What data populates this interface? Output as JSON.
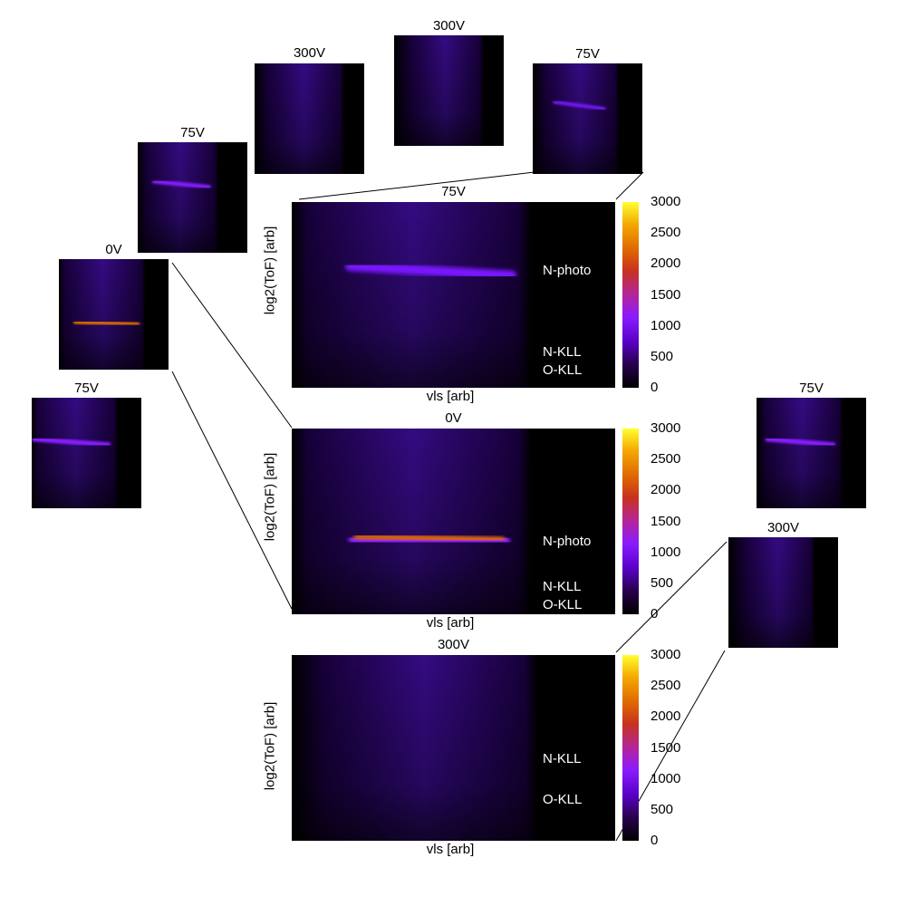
{
  "colorbar": {
    "min": 0,
    "max": 3000,
    "ticks": [
      "3000",
      "2500",
      "2000",
      "1500",
      "1000",
      "500",
      "0"
    ],
    "stops": [
      "#000000",
      "#2a0050",
      "#5a00c8",
      "#8a1cff",
      "#b3259a",
      "#c8321e",
      "#e06a00",
      "#f4a800",
      "#ffff30"
    ]
  },
  "thumbnails": [
    {
      "id": "t-300v-left",
      "title": "300V"
    },
    {
      "id": "t-300v-top",
      "title": "300V"
    },
    {
      "id": "t-75v-topright",
      "title": "75V"
    },
    {
      "id": "t-75v-upperleft",
      "title": "75V"
    },
    {
      "id": "t-0v-left",
      "title": "0V"
    },
    {
      "id": "t-75v-lowerleft",
      "title": "75V"
    },
    {
      "id": "t-75v-right",
      "title": "75V"
    },
    {
      "id": "t-300v-right",
      "title": "300V"
    }
  ],
  "chart_data": [
    {
      "type": "heatmap",
      "title": "75V",
      "xlabel": "vls [arb]",
      "ylabel": "log2(ToF) [arb]",
      "color_range": [
        0,
        3000
      ],
      "annotations": [
        "N-photo",
        "N-KLL",
        "O-KLL"
      ]
    },
    {
      "type": "heatmap",
      "title": "0V",
      "xlabel": "vls [arb]",
      "ylabel": "log2(ToF) [arb]",
      "color_range": [
        0,
        3000
      ],
      "annotations": [
        "N-photo",
        "N-KLL",
        "O-KLL"
      ]
    },
    {
      "type": "heatmap",
      "title": "300V",
      "xlabel": "vls [arb]",
      "ylabel": "log2(ToF) [arb]",
      "color_range": [
        0,
        3000
      ],
      "annotations": [
        "N-KLL",
        "O-KLL"
      ]
    }
  ]
}
